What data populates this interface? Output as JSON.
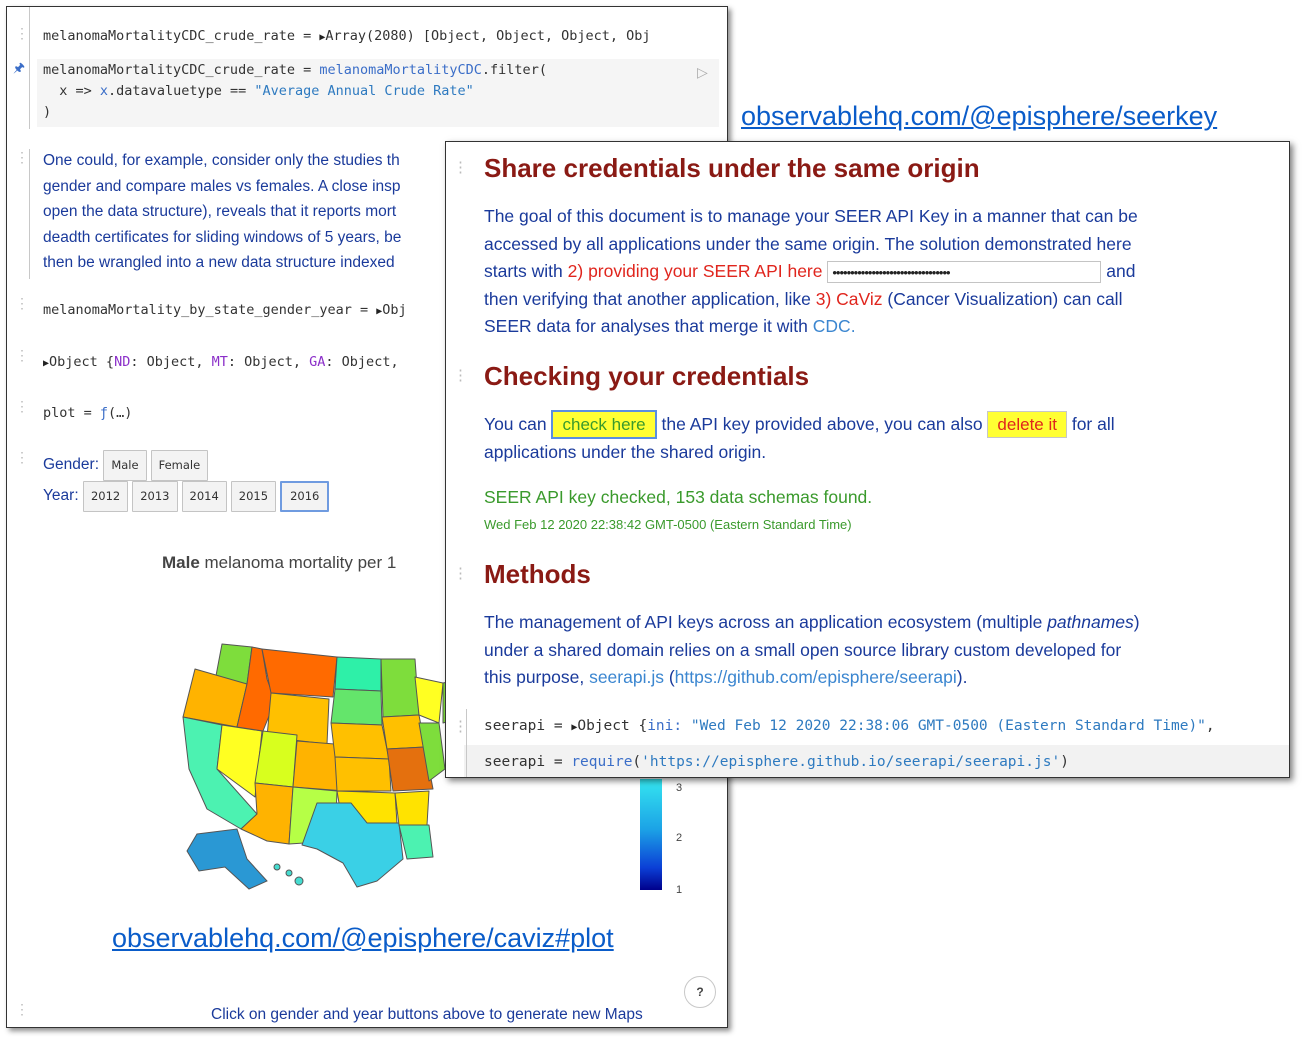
{
  "links": {
    "seerkey": "observablehq.com/@episphere/seerkey",
    "caviz": "observablehq.com/@episphere/caviz#plot"
  },
  "back": {
    "cell1_name": "melanomaMortalityCDC_crude_rate",
    "cell1_value": "Array(2080) [Object, Object, Object, Obj",
    "code2_line1_name": "melanomaMortalityCDC_crude_rate",
    "code2_line1_fn": "melanomaMortalityCDC",
    "code2_line1_rest": ".filter(",
    "code2_line2_a": "  x => ",
    "code2_line2_b": "x",
    "code2_line2_c": ".datavaluetype == ",
    "code2_line2_str": "\"Average Annual Crude Rate\"",
    "code2_line3": ")",
    "prose_lines": [
      "One could, for example, consider only the studies th",
      "gender and compare males vs females. A close insp",
      "open the data structure), reveals that it reports mort",
      "deadth certificates for sliding windows of 5 years, be",
      "then be wrangled into a new data structure indexed"
    ],
    "cell3_name": "melanomaMortality_by_state_gender_year",
    "cell3_value": "Obj",
    "cell4_obj": "Object {",
    "cell4_k1": "ND",
    "cell4_v1": ": Object, ",
    "cell4_k2": "MT",
    "cell4_v2": ": Object, ",
    "cell4_k3": "GA",
    "cell4_v3": ": Object, ",
    "cell5_name": "plot = ",
    "cell5_fn": "ƒ",
    "cell5_rest": "(…)",
    "gender_label": "Gender:",
    "gender_options": [
      "Male",
      "Female"
    ],
    "year_label": "Year:",
    "year_options": [
      "2012",
      "2013",
      "2014",
      "2015",
      "2016"
    ],
    "selected_year": "2016",
    "map_title_bold": "Male",
    "map_title_rest": " melanoma mortality per 1",
    "colorbar_ticks": [
      "3",
      "2",
      "1"
    ],
    "help": "?",
    "footer": "Click on gender and year buttons above to generate new Maps"
  },
  "front": {
    "h_share": "Share credentials under the same origin",
    "p1_line1": "The goal of this document is to manage your SEER API Key in a manner that can be",
    "p1_line2": "accessed by all applications under the same origin. The solution demonstrated here",
    "p1_line3_a": "starts with ",
    "p1_line3_red": "2) providing your SEER API here",
    "p1_line3_key": "•••••••••••••••••••••••••••••••••",
    "p1_line3_b": " and",
    "p1_line4_a": "then verifying that another application, like ",
    "p1_line4_red": "3) CaViz",
    "p1_line4_b": " (Cancer Visualization) can call",
    "p1_line5_a": "SEER data for analyses that merge it with ",
    "p1_line5_link": "CDC.",
    "h_check": "Checking your credentials",
    "p2_a": "You can ",
    "check_btn": "check here",
    "p2_b": " the API key provided above, you can also ",
    "delete_btn": "delete it",
    "p2_c": " for all",
    "p2_line2": "applications under the shared origin.",
    "status": "SEER API key checked, 153 data schemas found.",
    "timestamp": "Wed Feb 12 2020 22:38:42 GMT-0500 (Eastern Standard Time)",
    "h_methods": "Methods",
    "p3_line1_a": "The management of API keys across an application ecosystem (multiple ",
    "p3_line1_em": "pathnames",
    "p3_line1_b": ")",
    "p3_line2": "under a shared domain relies on a small open source library custom developed for",
    "p3_line3_a": "this purpose, ",
    "p3_line3_link": "seerapi.js",
    "p3_line3_b": " (",
    "p3_line3_url": "https://github.com/episphere/seerapi",
    "p3_line3_c": ").",
    "code1_name": "seerapi = ",
    "code1_obj": "Object {",
    "code1_key": "ini: ",
    "code1_str": "\"Wed Feb 12 2020 22:38:06 GMT-0500 (Eastern Standard Time)\"",
    "code1_tail": ",",
    "code2_name": "seerapi = ",
    "code2_fn": "require",
    "code2_open": "(",
    "code2_str": "'https://episphere.github.io/seerapi/seerapi.js'",
    "code2_close": ")"
  }
}
